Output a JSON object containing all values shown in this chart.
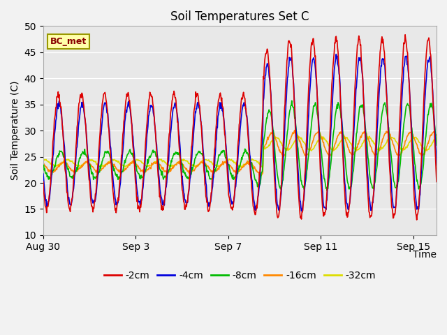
{
  "title": "Soil Temperatures Set C",
  "xlabel": "Time",
  "ylabel": "Soil Temperature (C)",
  "ylim": [
    10,
    50
  ],
  "yticks": [
    10,
    15,
    20,
    25,
    30,
    35,
    40,
    45,
    50
  ],
  "xtick_labels": [
    "Aug 30",
    "Sep 3",
    "Sep 7",
    "Sep 11",
    "Sep 15"
  ],
  "xtick_days": [
    0,
    4,
    8,
    12,
    16
  ],
  "n_days": 17.0,
  "colors": {
    "-2cm": "#dd0000",
    "-4cm": "#0000dd",
    "-8cm": "#00bb00",
    "-16cm": "#ff8800",
    "-32cm": "#dddd00"
  },
  "annotation_text": "BC_met",
  "plot_bg": "#e8e8e8",
  "fig_bg": "#f2f2f2",
  "linewidth": 1.2,
  "grid_color": "#ffffff",
  "title_fontsize": 12,
  "label_fontsize": 10,
  "tick_fontsize": 10
}
